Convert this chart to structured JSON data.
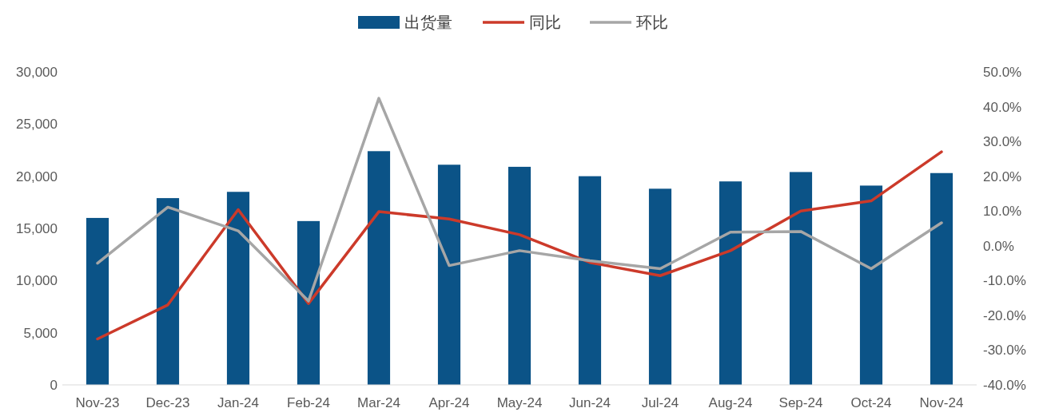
{
  "chart_data": {
    "type": "bar",
    "categories": [
      "Nov-23",
      "Dec-23",
      "Jan-24",
      "Feb-24",
      "Mar-24",
      "Apr-24",
      "May-24",
      "Jun-24",
      "Jul-24",
      "Aug-24",
      "Sep-24",
      "Oct-24",
      "Nov-24"
    ],
    "series": [
      {
        "name": "出货量",
        "color": "#0b5387",
        "values": [
          16000,
          17900,
          18500,
          15700,
          22400,
          21100,
          20900,
          20000,
          18800,
          19500,
          20400,
          19100,
          20300
        ]
      },
      {
        "name": "同比",
        "type": "line",
        "axis": "y2",
        "color": "#cc3a2a",
        "values": [
          -26.8,
          -17.0,
          10.4,
          -16.6,
          9.8,
          7.7,
          3.2,
          -4.8,
          -8.6,
          -1.4,
          10.0,
          12.9,
          27.0
        ]
      },
      {
        "name": "环比",
        "type": "line",
        "axis": "y2",
        "color": "#a6a6a6",
        "values": [
          -5.0,
          11.1,
          4.3,
          -15.9,
          42.4,
          -5.7,
          -1.4,
          -4.3,
          -6.6,
          3.9,
          4.1,
          -6.6,
          6.6
        ]
      }
    ],
    "ylim": [
      0,
      30000
    ],
    "yticks": [
      0,
      {
        "value": 5000,
        "label": "5,000"
      },
      {
        "value": 10000,
        "label": "10,000"
      },
      {
        "value": 15000,
        "label": "15,000"
      },
      {
        "value": 20000,
        "label": "20,000"
      },
      {
        "value": 25000,
        "label": "25,000"
      },
      {
        "value": 30000,
        "label": "30,000"
      }
    ],
    "y2lim": [
      -40,
      50
    ],
    "y2ticks": [
      {
        "value": -40,
        "label": "-40.0%"
      },
      {
        "value": -30,
        "label": "-30.0%"
      },
      {
        "value": -20,
        "label": "-20.0%"
      },
      {
        "value": -10,
        "label": "-10.0%"
      },
      {
        "value": 0,
        "label": "0.0%"
      },
      {
        "value": 10,
        "label": "10.0%"
      },
      {
        "value": 20,
        "label": "20.0%"
      },
      {
        "value": 30,
        "label": "30.0%"
      },
      {
        "value": 40,
        "label": "40.0%"
      },
      {
        "value": 50,
        "label": "50.0%"
      }
    ],
    "legend": "top",
    "grid": false,
    "marker": "none",
    "line_style": "solid"
  }
}
